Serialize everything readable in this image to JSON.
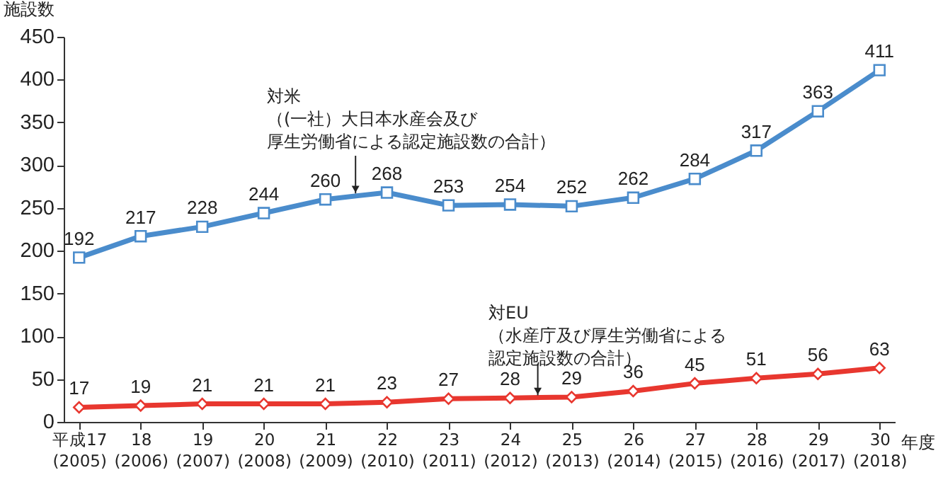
{
  "chart_data": {
    "type": "line",
    "xlabel": "年度",
    "ylabel": "施設数",
    "categories": [
      "平成17\n(2005)",
      "18\n(2006)",
      "19\n(2007)",
      "20\n(2008)",
      "21\n(2009)",
      "22\n(2010)",
      "23\n(2011)",
      "24\n(2012)",
      "25\n(2013)",
      "26\n(2014)",
      "27\n(2015)",
      "28\n(2016)",
      "29\n(2017)",
      "30\n(2018)"
    ],
    "series": [
      {
        "name": "対米（(一社）大日本水産会及び厚生労働省による認定施設数の合計）",
        "color": "#4a8ccc",
        "marker": "square",
        "values": [
          192,
          217,
          228,
          244,
          260,
          268,
          253,
          254,
          252,
          262,
          284,
          317,
          363,
          411
        ]
      },
      {
        "name": "対EU（水産庁及び厚生労働省による認定施設数の合計）",
        "color": "#e8372f",
        "marker": "diamond",
        "values": [
          17,
          19,
          21,
          21,
          21,
          23,
          27,
          28,
          29,
          36,
          45,
          51,
          56,
          63
        ]
      }
    ],
    "ylim": [
      0,
      450
    ],
    "yticks": [
      0,
      50,
      100,
      150,
      200,
      250,
      300,
      350,
      400,
      450
    ],
    "data_labels": true,
    "line_style": "solid"
  }
}
